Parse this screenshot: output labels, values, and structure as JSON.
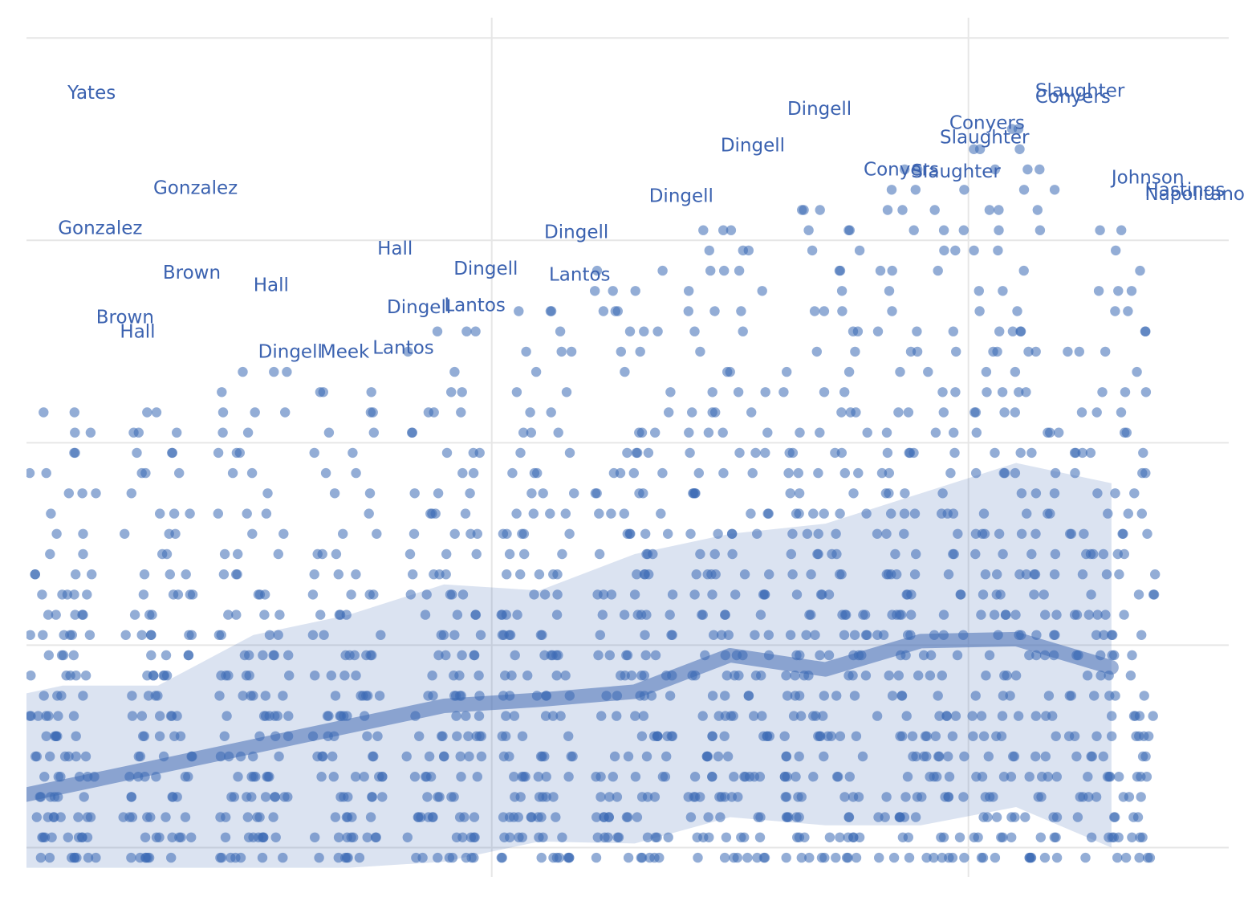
{
  "chart_data": {
    "type": "scatter",
    "title": "",
    "xlabel": "",
    "ylabel": "",
    "xlim": [
      -0.5,
      12.5
    ],
    "ylim": [
      0,
      42
    ],
    "grid": true,
    "x_gridlines": [
      4.5,
      9.5
    ],
    "y_gridlines": [
      1.5,
      11.5,
      21.5,
      31.5,
      41.5
    ],
    "point_series": {
      "name": "",
      "columns": [
        {
          "x": 0,
          "max_y": 23,
          "jitter": 0.35
        },
        {
          "x": 1,
          "max_y": 23,
          "jitter": 0.37
        },
        {
          "x": 2,
          "max_y": 25,
          "jitter": 0.38
        },
        {
          "x": 3,
          "max_y": 24,
          "jitter": 0.38
        },
        {
          "x": 4,
          "max_y": 27,
          "jitter": 0.4
        },
        {
          "x": 5,
          "max_y": 28,
          "jitter": 0.4
        },
        {
          "x": 6,
          "max_y": 30,
          "jitter": 0.42
        },
        {
          "x": 7,
          "max_y": 32,
          "jitter": 0.44
        },
        {
          "x": 8,
          "max_y": 33,
          "jitter": 0.44
        },
        {
          "x": 9,
          "max_y": 35,
          "jitter": 0.46
        },
        {
          "x": 10,
          "max_y": 37,
          "jitter": 0.46
        },
        {
          "x": 11,
          "max_y": 32,
          "jitter": 0.46
        }
      ]
    },
    "mean_line": {
      "x": [
        -0.5,
        0,
        1,
        2,
        3,
        4,
        5,
        6,
        7,
        8,
        9,
        10,
        11
      ],
      "y": [
        4.0,
        4.5,
        5.5,
        6.5,
        7.5,
        8.5,
        8.8,
        9.2,
        11.0,
        10.3,
        11.7,
        11.8,
        10.4
      ]
    },
    "band": {
      "x": [
        -0.5,
        0,
        1,
        2,
        3,
        4,
        5,
        6,
        7,
        8,
        9,
        10,
        11,
        11.0
      ],
      "upper": [
        9.0,
        9.5,
        9.5,
        12.0,
        13.0,
        14.5,
        14.2,
        16.0,
        17.0,
        17.5,
        19.0,
        20.5,
        19.5,
        19.5
      ],
      "lower": [
        0.5,
        0.5,
        0.5,
        0.5,
        0.5,
        0.8,
        1.8,
        1.7,
        3.0,
        2.6,
        2.6,
        3.5,
        1.5,
        1.5
      ]
    },
    "annotations": [
      {
        "text": "Yates",
        "x": 0.05,
        "y": 38.5
      },
      {
        "text": "Gonzalez",
        "x": 0.95,
        "y": 33.8
      },
      {
        "text": "Gonzalez",
        "x": -0.05,
        "y": 31.8
      },
      {
        "text": "Brown",
        "x": 1.05,
        "y": 29.6
      },
      {
        "text": "Hall",
        "x": 2.0,
        "y": 29.0
      },
      {
        "text": "Hall",
        "x": 3.3,
        "y": 30.8
      },
      {
        "text": "Brown",
        "x": 0.35,
        "y": 27.4
      },
      {
        "text": "Hall",
        "x": 0.6,
        "y": 26.7
      },
      {
        "text": "Dingell",
        "x": 2.05,
        "y": 25.7
      },
      {
        "text": "Meek",
        "x": 2.7,
        "y": 25.7
      },
      {
        "text": "Lantos",
        "x": 3.25,
        "y": 25.9
      },
      {
        "text": "Dingell",
        "x": 4.1,
        "y": 29.8
      },
      {
        "text": "Dingell",
        "x": 3.4,
        "y": 27.9
      },
      {
        "text": "Lantos",
        "x": 4.0,
        "y": 28.0
      },
      {
        "text": "Dingell",
        "x": 5.05,
        "y": 31.6
      },
      {
        "text": "Lantos",
        "x": 5.1,
        "y": 29.5
      },
      {
        "text": "Dingell",
        "x": 6.15,
        "y": 33.4
      },
      {
        "text": "Dingell",
        "x": 6.9,
        "y": 35.9
      },
      {
        "text": "Dingell",
        "x": 7.6,
        "y": 37.7
      },
      {
        "text": "Conyers",
        "x": 8.4,
        "y": 34.7
      },
      {
        "text": "Slaughter",
        "x": 8.9,
        "y": 34.6
      },
      {
        "text": "Conyers",
        "x": 9.3,
        "y": 37.0
      },
      {
        "text": "Slaughter",
        "x": 9.2,
        "y": 36.3
      },
      {
        "text": "Slaughter",
        "x": 10.2,
        "y": 38.6
      },
      {
        "text": "Conyers",
        "x": 10.2,
        "y": 38.3
      },
      {
        "text": "Johnson",
        "x": 11.0,
        "y": 34.3
      },
      {
        "text": "Hastings",
        "x": 11.35,
        "y": 33.7
      },
      {
        "text": "Napolitano",
        "x": 11.35,
        "y": 33.5
      }
    ]
  }
}
